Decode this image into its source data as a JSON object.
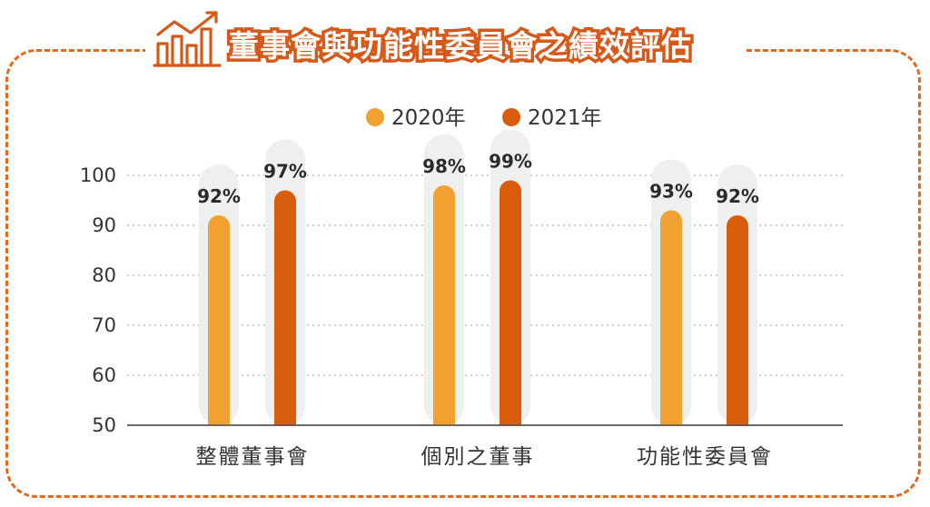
{
  "title": "董事會與功能性委員會之績效評估",
  "icon": "bar-chart-trend-icon",
  "colors": {
    "accent": "#d7591a",
    "series_2020": "#f0a12f",
    "series_2021": "#d95b0c",
    "track": "#eef0ef",
    "grid": "#b8c1c7",
    "frame": "#de6a1f"
  },
  "chart_data": {
    "type": "bar",
    "title": "董事會與功能性委員會之績效評估",
    "categories": [
      "整體董事會",
      "個別之董事",
      "功能性委員會"
    ],
    "series": [
      {
        "name": "2020年",
        "values": [
          92,
          98,
          93
        ],
        "labels": [
          "92%",
          "98%",
          "93%"
        ]
      },
      {
        "name": "2021年",
        "values": [
          97,
          99,
          92
        ],
        "labels": [
          "97%",
          "99%",
          "92%"
        ]
      }
    ],
    "ylim": [
      50,
      100
    ],
    "yticks": [
      "100",
      "90",
      "80",
      "70",
      "60",
      "50"
    ],
    "grid": true,
    "legend": "top-center"
  }
}
